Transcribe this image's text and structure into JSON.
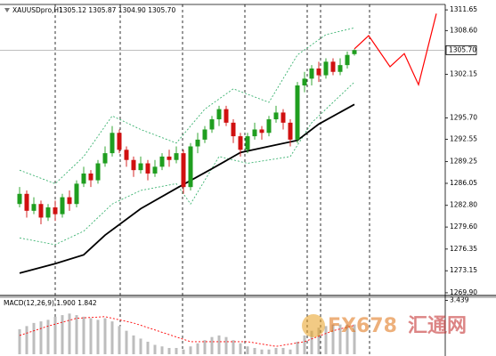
{
  "chart_data": [
    {
      "type": "candlestick",
      "title": "XAUUSDpro,H1",
      "ohlc_label": "1305.12 1305.87 1304.90 1305.70",
      "up_color": "#1f9e1f",
      "down_color": "#d01010",
      "open": [
        1283.0,
        1284.5,
        1282.0,
        1283.0,
        1281.0,
        1282.5,
        1281.5,
        1284.0,
        1283.0,
        1286.0,
        1287.5,
        1286.5,
        1289.0,
        1290.5,
        1293.5,
        1291.0,
        1289.5,
        1288.0,
        1289.0,
        1287.5,
        1288.5,
        1290.0,
        1289.5,
        1290.5,
        1285.5,
        1291.5,
        1292.5,
        1294.0,
        1295.5,
        1297.0,
        1295.0,
        1293.0,
        1291.0,
        1293.0,
        1294.0,
        1293.5,
        1295.5,
        1296.5,
        1295.0,
        1292.5,
        1300.5,
        1301.5,
        1303.0,
        1302.0,
        1304.0,
        1302.5,
        1303.5,
        1305.12
      ],
      "high": [
        1285.5,
        1285.0,
        1284.0,
        1283.5,
        1283.0,
        1283.5,
        1284.5,
        1285.0,
        1286.5,
        1288.5,
        1288.0,
        1289.5,
        1291.5,
        1294.5,
        1294.0,
        1291.5,
        1290.0,
        1290.0,
        1289.5,
        1289.5,
        1290.5,
        1291.0,
        1291.5,
        1291.0,
        1292.0,
        1293.5,
        1294.5,
        1296.0,
        1297.5,
        1297.5,
        1295.5,
        1293.5,
        1293.5,
        1295.0,
        1294.5,
        1296.0,
        1297.5,
        1297.0,
        1295.5,
        1301.0,
        1302.5,
        1303.5,
        1304.0,
        1304.5,
        1304.5,
        1304.5,
        1305.5,
        1305.87
      ],
      "low": [
        1282.5,
        1281.0,
        1281.5,
        1280.0,
        1280.5,
        1280.5,
        1281.0,
        1282.0,
        1282.5,
        1285.5,
        1285.5,
        1286.0,
        1288.5,
        1290.0,
        1290.5,
        1288.5,
        1287.0,
        1287.5,
        1286.5,
        1287.0,
        1288.0,
        1288.5,
        1289.0,
        1284.5,
        1285.0,
        1290.5,
        1292.0,
        1293.5,
        1294.5,
        1294.5,
        1292.0,
        1290.0,
        1290.5,
        1292.5,
        1292.5,
        1293.0,
        1295.0,
        1294.0,
        1291.5,
        1292.0,
        1299.5,
        1300.5,
        1301.0,
        1301.5,
        1302.0,
        1302.0,
        1303.0,
        1304.9
      ],
      "close": [
        1284.5,
        1282.0,
        1283.0,
        1281.0,
        1282.5,
        1281.5,
        1284.0,
        1283.0,
        1286.0,
        1287.5,
        1286.5,
        1289.0,
        1290.5,
        1293.5,
        1291.0,
        1289.5,
        1288.0,
        1289.0,
        1287.5,
        1288.5,
        1290.0,
        1289.5,
        1290.5,
        1285.5,
        1291.5,
        1292.5,
        1294.0,
        1295.5,
        1297.0,
        1295.0,
        1293.0,
        1291.0,
        1293.0,
        1294.0,
        1293.5,
        1295.5,
        1296.5,
        1295.0,
        1292.5,
        1300.5,
        1301.5,
        1303.0,
        1302.0,
        1304.0,
        1302.5,
        1303.5,
        1305.0,
        1305.7
      ],
      "ma": {
        "color": "#000000",
        "x": [
          0,
          5,
          9,
          12,
          17,
          22,
          27,
          31,
          35,
          39,
          42,
          47
        ],
        "values": [
          1272.8,
          1274.2,
          1275.5,
          1278.4,
          1282.3,
          1285.3,
          1288.2,
          1290.6,
          1291.5,
          1292.4,
          1294.8,
          1297.7
        ]
      },
      "bands": {
        "color": "#3cb371",
        "upper": {
          "x": [
            0,
            5,
            9,
            13,
            17,
            22,
            26,
            30,
            35,
            39,
            43,
            47
          ],
          "values": [
            1288,
            1286,
            1290,
            1296,
            1294,
            1292,
            1297,
            1300,
            1298,
            1305,
            1308,
            1309
          ]
        },
        "lower": {
          "x": [
            0,
            5,
            9,
            13,
            17,
            22,
            24,
            28,
            32,
            38,
            41,
            47
          ],
          "values": [
            1278,
            1277,
            1279,
            1283,
            1285,
            1286,
            1283,
            1290,
            1289,
            1290,
            1295,
            1301
          ]
        }
      },
      "forecast": {
        "color": "#ff0000",
        "x": [
          47,
          49,
          52,
          54,
          56,
          58.5
        ],
        "values": [
          1305.9,
          1307.85,
          1303.25,
          1305.2,
          1300.6,
          1311.1
        ]
      },
      "xlim": [
        -2.75,
        59.75
      ],
      "ylim": [
        1269.5,
        1312.45
      ],
      "yticks": [
        1311.65,
        {
          "value": 1308.6,
          "label": "1308.60"
        },
        1302.15,
        {
          "value": 1295.7,
          "label": "1295.70"
        },
        1292.55,
        1289.25,
        1286.05,
        {
          "value": 1282.8,
          "label": "1282.80"
        },
        {
          "value": 1279.6,
          "label": "1279.60"
        },
        1276.35,
        1273.15,
        {
          "value": 1269.9,
          "label": "1269.90"
        }
      ],
      "current_price": {
        "value": 1305.7,
        "label": "1305.70"
      }
    },
    {
      "type": "macd",
      "label": "MACD(12,26,9) 1.900 1.842",
      "histogram": {
        "color": "#bdbdbd",
        "values": [
          1.6,
          1.8,
          2.0,
          2.1,
          2.2,
          2.4,
          2.5,
          2.6,
          2.5,
          2.4,
          2.3,
          2.2,
          2.3,
          2.1,
          1.8,
          1.5,
          1.2,
          1.0,
          0.8,
          0.6,
          0.5,
          0.4,
          0.4,
          0.3,
          0.5,
          0.7,
          0.9,
          1.1,
          1.2,
          1.1,
          0.9,
          0.7,
          0.5,
          0.4,
          0.3,
          0.3,
          0.4,
          0.4,
          0.3,
          0.8,
          1.2,
          1.5,
          1.7,
          1.8,
          1.9,
          1.9,
          1.9,
          1.9
        ]
      },
      "signal": {
        "color": "#ff0000",
        "x": [
          0,
          4,
          8,
          12,
          16,
          20,
          24,
          28,
          32,
          36,
          40,
          44,
          47
        ],
        "values": [
          1.2,
          1.8,
          2.3,
          2.4,
          2.0,
          1.4,
          0.8,
          0.8,
          0.8,
          0.5,
          0.8,
          1.5,
          1.842
        ]
      },
      "xlim": [
        -2.75,
        59.75
      ],
      "ylim": [
        0,
        3.7
      ],
      "yticks": [
        3.439
      ]
    }
  ],
  "watermark": {
    "brand": "FX678",
    "name": "汇通网"
  }
}
